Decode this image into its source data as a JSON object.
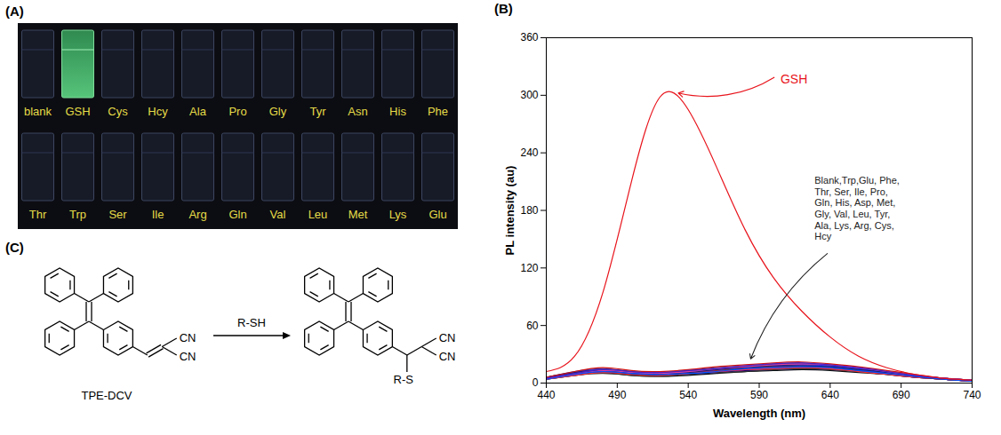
{
  "panel_a": {
    "panel_label": "(A)",
    "rows": [
      [
        "blank",
        "GSH",
        "Cys",
        "Hcy",
        "Ala",
        "Pro",
        "Gly",
        "Tyr",
        "Asn",
        "His",
        "Phe"
      ],
      [
        "Thr",
        "Trp",
        "Ser",
        "Ile",
        "Arg",
        "Gln",
        "Val",
        "Leu",
        "Met",
        "Lys",
        "Glu"
      ]
    ],
    "bright": "GSH"
  },
  "chart_data": {
    "panel_label": "(B)",
    "type": "line",
    "x_label": "Wavelength (nm)",
    "y_label": "PL intensity (au)",
    "x": [
      440,
      460,
      480,
      500,
      520,
      540,
      560,
      580,
      600,
      620,
      640,
      660,
      680,
      700,
      720,
      740
    ],
    "xlim": [
      440,
      740
    ],
    "xticks": [
      440,
      490,
      540,
      590,
      640,
      690,
      740
    ],
    "ylim": [
      0,
      360
    ],
    "yticks": [
      0,
      60,
      120,
      180,
      240,
      300,
      360
    ],
    "series": [
      {
        "name": "Blank",
        "color": "#111111",
        "values": [
          4,
          9,
          11,
          8,
          7,
          8,
          10,
          12,
          13,
          14,
          13,
          11,
          9,
          6,
          4,
          2
        ]
      },
      {
        "name": "Trp",
        "color": "#1f3fd1",
        "values": [
          6,
          10,
          13,
          10,
          9,
          11,
          13,
          15,
          17,
          18,
          17,
          14,
          11,
          7,
          4,
          2
        ]
      },
      {
        "name": "Glu",
        "color": "#e02020",
        "values": [
          5,
          9,
          12,
          9,
          8,
          10,
          12,
          14,
          16,
          17,
          16,
          13,
          10,
          7,
          4,
          2
        ]
      },
      {
        "name": "Phe",
        "color": "#8a2be2",
        "values": [
          5,
          10,
          14,
          11,
          10,
          12,
          14,
          17,
          18,
          19,
          18,
          15,
          11,
          8,
          5,
          3
        ]
      },
      {
        "name": "Thr",
        "color": "#000080",
        "values": [
          4,
          8,
          11,
          9,
          8,
          9,
          11,
          13,
          14,
          15,
          14,
          12,
          9,
          6,
          4,
          2
        ]
      },
      {
        "name": "Ser",
        "color": "#d020d0",
        "values": [
          5,
          9,
          12,
          10,
          9,
          10,
          12,
          14,
          16,
          16,
          15,
          13,
          10,
          7,
          4,
          2
        ]
      },
      {
        "name": "Ile",
        "color": "#209020",
        "values": [
          6,
          11,
          14,
          12,
          11,
          13,
          15,
          17,
          19,
          20,
          18,
          15,
          12,
          8,
          5,
          3
        ]
      },
      {
        "name": "Pro",
        "color": "#3050f0",
        "values": [
          4,
          9,
          12,
          10,
          9,
          11,
          13,
          15,
          16,
          17,
          16,
          13,
          10,
          7,
          4,
          2
        ]
      },
      {
        "name": "Gln",
        "color": "#c02060",
        "values": [
          5,
          10,
          13,
          11,
          10,
          12,
          14,
          16,
          18,
          19,
          17,
          14,
          11,
          7,
          5,
          3
        ]
      },
      {
        "name": "His",
        "color": "#4040a0",
        "values": [
          6,
          12,
          15,
          12,
          11,
          13,
          16,
          18,
          20,
          21,
          19,
          16,
          12,
          8,
          5,
          3
        ]
      },
      {
        "name": "Asp",
        "color": "#333333",
        "values": [
          4,
          8,
          10,
          8,
          7,
          9,
          11,
          12,
          14,
          15,
          14,
          12,
          9,
          6,
          4,
          2
        ]
      },
      {
        "name": "Met",
        "color": "#1060c0",
        "values": [
          5,
          9,
          12,
          10,
          9,
          11,
          13,
          16,
          17,
          18,
          17,
          14,
          11,
          7,
          4,
          2
        ]
      },
      {
        "name": "Gly",
        "color": "#b03030",
        "values": [
          5,
          10,
          13,
          11,
          10,
          11,
          13,
          15,
          17,
          17,
          16,
          13,
          10,
          7,
          4,
          2
        ]
      },
      {
        "name": "Val",
        "color": "#6a1b9a",
        "values": [
          6,
          10,
          12,
          10,
          9,
          11,
          12,
          14,
          15,
          16,
          15,
          13,
          10,
          6,
          4,
          2
        ]
      },
      {
        "name": "Leu",
        "color": "#2a2aff",
        "values": [
          5,
          11,
          14,
          11,
          10,
          12,
          14,
          17,
          18,
          19,
          18,
          15,
          11,
          8,
          5,
          3
        ]
      },
      {
        "name": "Tyr",
        "color": "#ff3030",
        "values": [
          4,
          8,
          11,
          9,
          8,
          10,
          12,
          14,
          15,
          16,
          15,
          12,
          9,
          6,
          4,
          2
        ]
      },
      {
        "name": "Ala",
        "color": "#202060",
        "values": [
          6,
          11,
          13,
          10,
          9,
          11,
          14,
          16,
          18,
          18,
          17,
          14,
          11,
          7,
          4,
          2
        ]
      },
      {
        "name": "Lys",
        "color": "#e040a0",
        "values": [
          5,
          9,
          13,
          11,
          10,
          12,
          15,
          17,
          19,
          20,
          19,
          16,
          12,
          8,
          5,
          3
        ]
      },
      {
        "name": "Arg",
        "color": "#0050ff",
        "values": [
          4,
          9,
          12,
          10,
          9,
          10,
          12,
          15,
          16,
          17,
          16,
          13,
          10,
          7,
          4,
          2
        ]
      },
      {
        "name": "Cys",
        "color": "#d01010",
        "values": [
          6,
          12,
          16,
          13,
          12,
          14,
          17,
          19,
          21,
          22,
          20,
          17,
          13,
          9,
          5,
          3
        ]
      },
      {
        "name": "Hcy",
        "color": "#5020c0",
        "values": [
          5,
          10,
          14,
          12,
          11,
          13,
          15,
          18,
          20,
          21,
          19,
          16,
          12,
          8,
          5,
          3
        ]
      },
      {
        "name": "GSH",
        "color": "#e8141c",
        "values": [
          12,
          28,
          95,
          210,
          298,
          285,
          225,
          160,
          110,
          75,
          48,
          28,
          16,
          9,
          5,
          3
        ]
      }
    ],
    "annotations": [
      {
        "text": "GSH",
        "color": "#e8141c"
      },
      {
        "text_lines": [
          "Blank,Trp,Glu, Phe,",
          "Thr, Ser, Ile, Pro,",
          "Gln, His, Asp, Met,",
          "Gly, Val, Leu, Tyr,",
          "Ala, Lys, Arg, Cys,",
          "Hcy"
        ],
        "color": "#222222"
      }
    ]
  },
  "panel_c": {
    "panel_label": "(C)",
    "reagent": "R-SH",
    "reactant": {
      "name": "TPE-DCV",
      "groups": [
        "CN",
        "CN"
      ]
    },
    "product": {
      "groups": [
        "CN",
        "CN"
      ],
      "substituent": "R-S"
    }
  }
}
